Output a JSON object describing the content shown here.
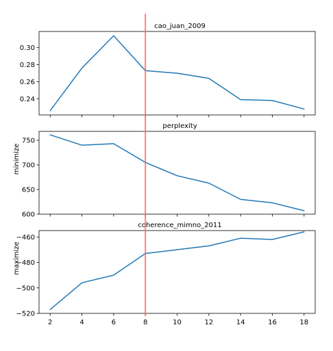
{
  "chart_data": {
    "type": "line",
    "shared_x_ticks": [
      2,
      4,
      6,
      8,
      10,
      12,
      14,
      16,
      18
    ],
    "xlim": [
      1.3,
      18.7
    ],
    "marker_x": 8,
    "colors": {
      "series": "#1f77b4",
      "marker": "#ff6b5b"
    },
    "panels": [
      {
        "title": "cao_juan_2009",
        "ylabel": "",
        "ylim": [
          0.221,
          0.319
        ],
        "yticks": [
          0.24,
          0.26,
          0.28,
          0.3
        ],
        "ytick_labels": [
          "0.24",
          "0.26",
          "0.28",
          "0.30"
        ],
        "x": [
          2,
          4,
          6,
          8,
          10,
          12,
          14,
          16,
          18
        ],
        "values": [
          0.226,
          0.276,
          0.314,
          0.273,
          0.27,
          0.264,
          0.239,
          0.238,
          0.228
        ],
        "show_x_labels": false
      },
      {
        "title": "perplexity",
        "ylabel": "minimize",
        "ylim": [
          600,
          768
        ],
        "yticks": [
          600,
          650,
          700,
          750
        ],
        "ytick_labels": [
          "600",
          "650",
          "700",
          "750"
        ],
        "x": [
          2,
          4,
          6,
          8,
          10,
          12,
          14,
          16,
          18
        ],
        "values": [
          761,
          740,
          743,
          705,
          678,
          663,
          630,
          623,
          607
        ],
        "show_x_labels": false
      },
      {
        "title": "coherence_mimno_2011",
        "ylabel": "maximize",
        "ylim": [
          -520,
          -455
        ],
        "yticks": [
          -520,
          -500,
          -480,
          -460
        ],
        "ytick_labels": [
          "−520",
          "−500",
          "−480",
          "−460"
        ],
        "x": [
          2,
          4,
          6,
          8,
          10,
          12,
          14,
          16,
          18
        ],
        "values": [
          -517,
          -496,
          -490,
          -473,
          -470,
          -467,
          -461,
          -462,
          -456
        ],
        "show_x_labels": true
      }
    ]
  }
}
